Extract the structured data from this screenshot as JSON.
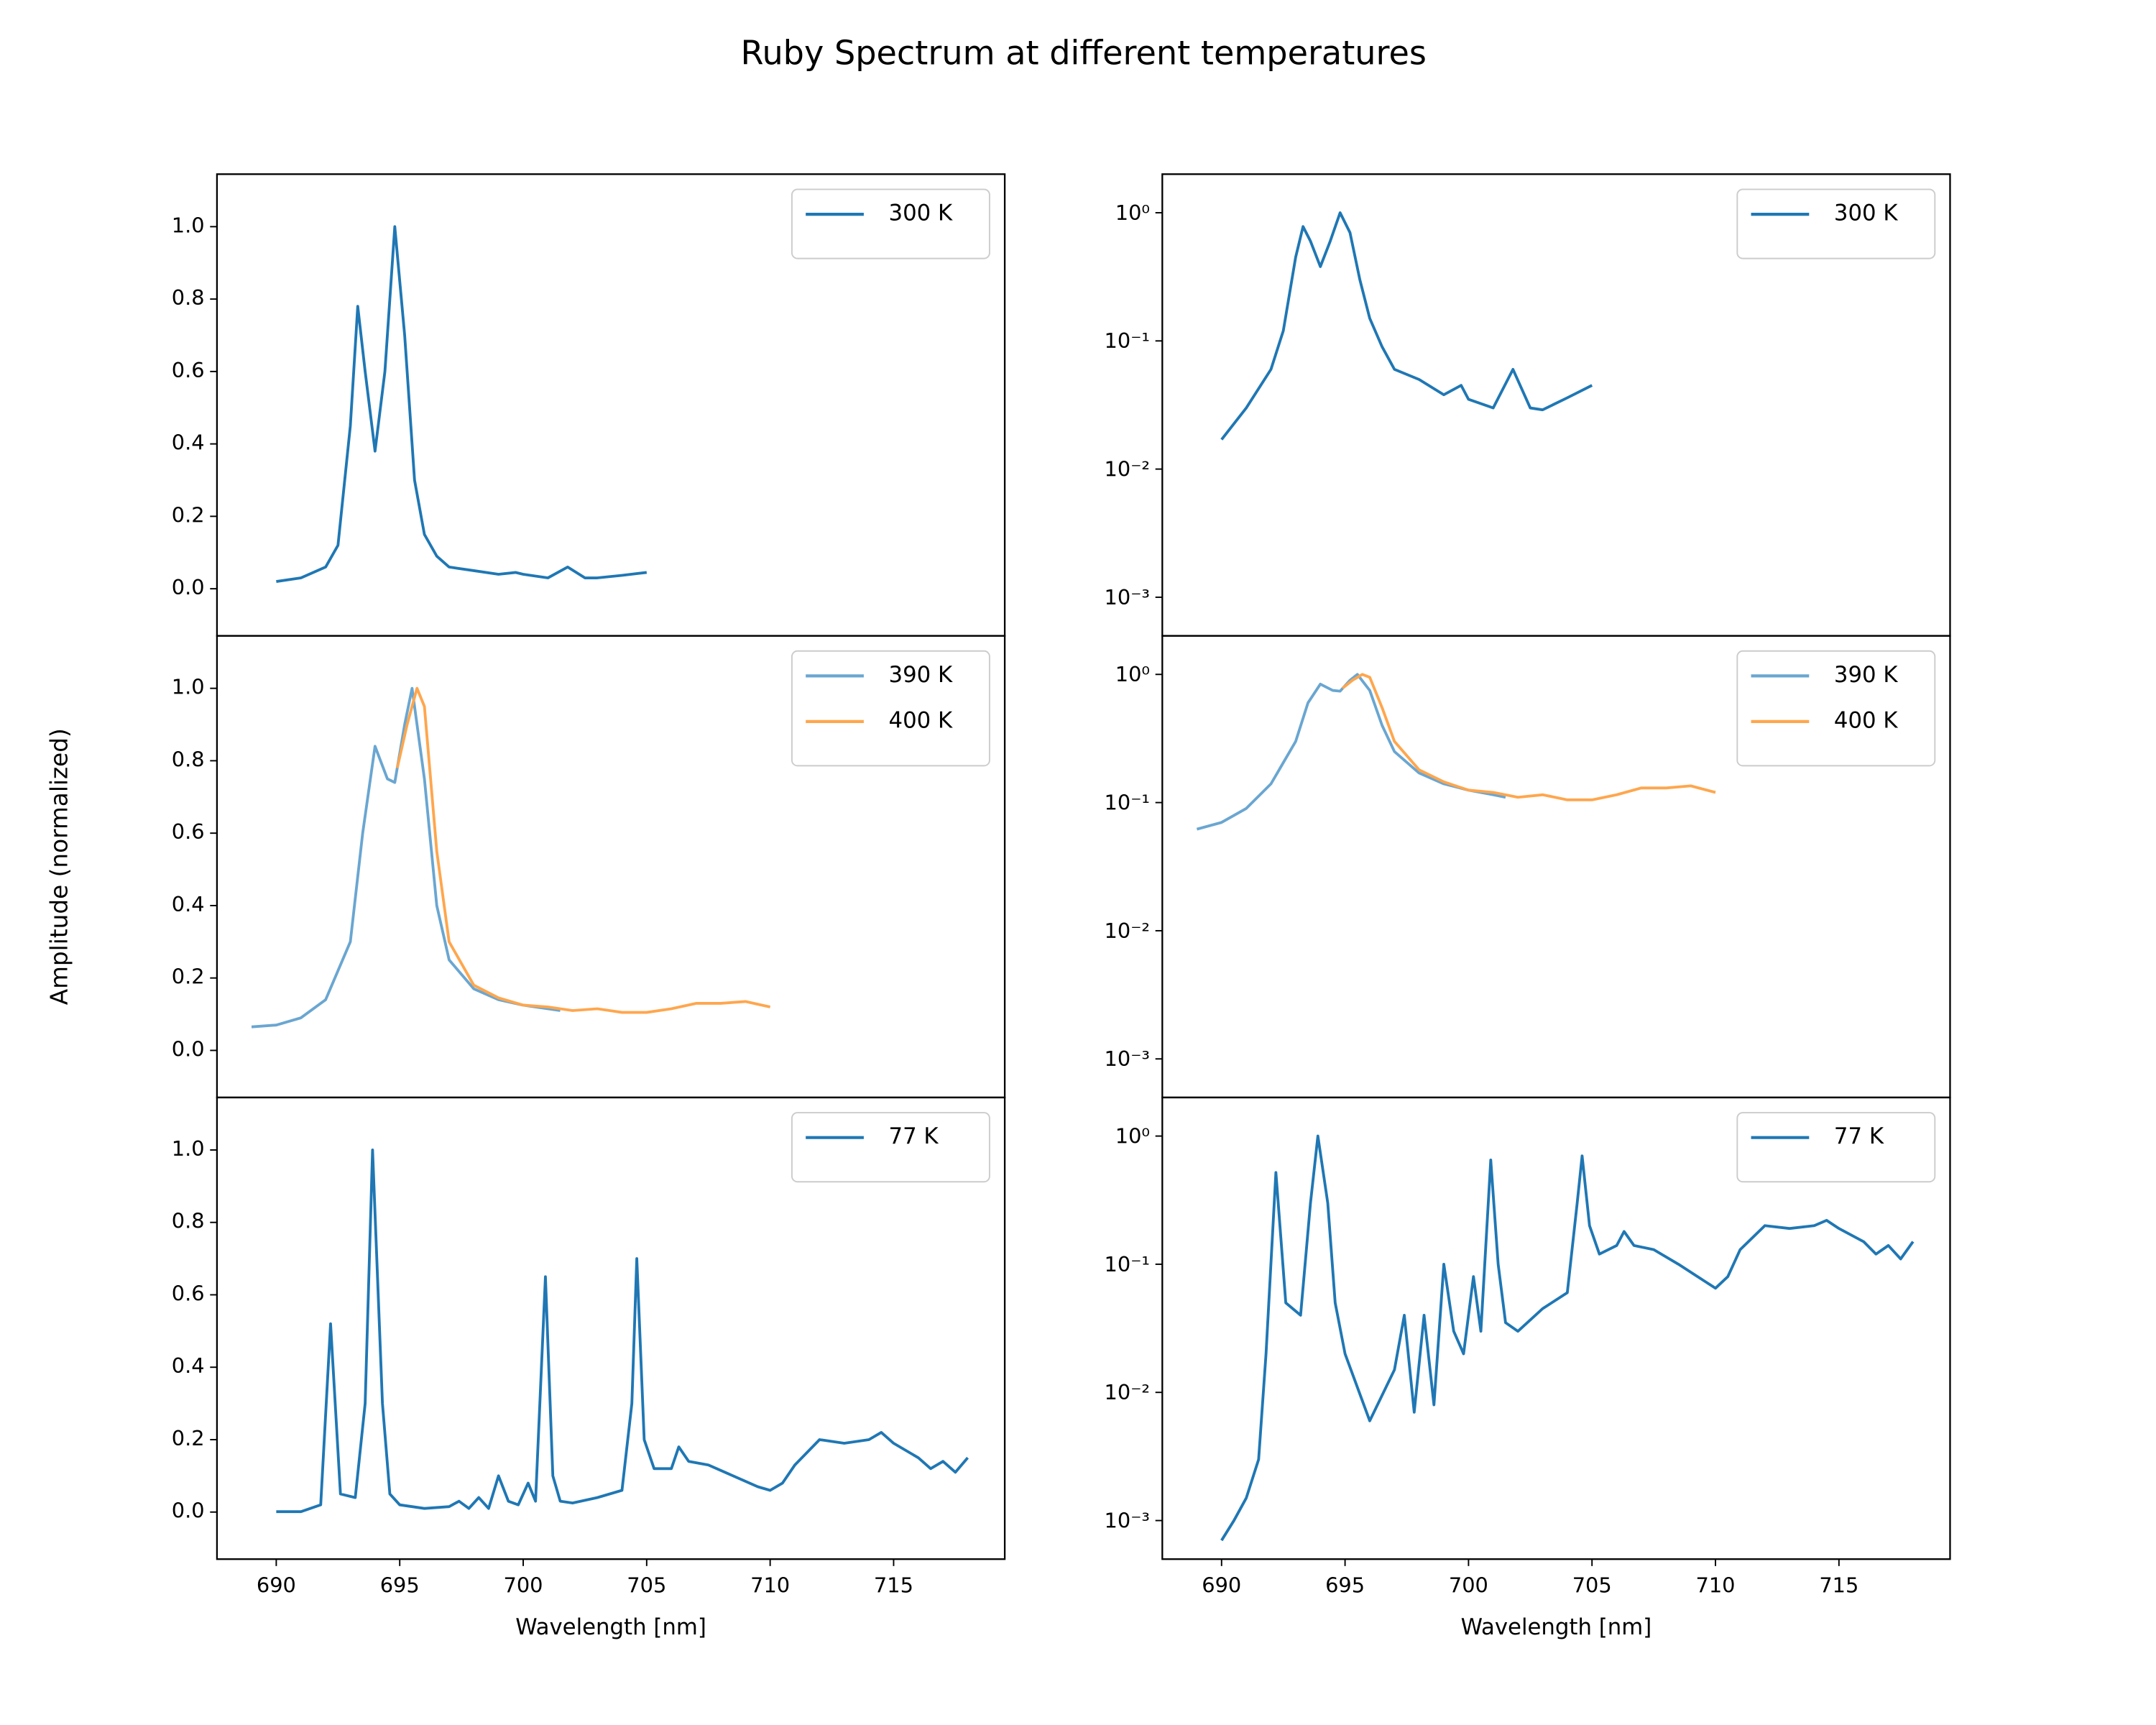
{
  "title": "Ruby Spectrum at different temperatures",
  "ylabel": "Amplitude (normalized)",
  "chart_data": [
    {
      "type": "line",
      "xlim": [
        687.6,
        719.5
      ],
      "ylim": [
        -0.13,
        1.145
      ],
      "yscale": "linear",
      "legend": "upper right",
      "yticks": [
        {
          "value": 0,
          "label": "0.0"
        },
        0.2,
        0.4,
        0.6,
        0.8,
        {
          "value": 1,
          "label": "1.0"
        }
      ],
      "series": [
        {
          "name": "300 K",
          "color": "#1f77b4",
          "x": [
            690,
            691,
            692,
            692.5,
            693,
            693.3,
            693.6,
            694,
            694.4,
            694.8,
            695.2,
            695.6,
            696,
            696.5,
            697,
            698,
            699,
            699.7,
            700,
            701,
            701.8,
            702.5,
            703,
            704,
            705
          ],
          "values": [
            0.02,
            0.03,
            0.06,
            0.12,
            0.45,
            0.78,
            0.6,
            0.38,
            0.6,
            1.0,
            0.7,
            0.3,
            0.15,
            0.09,
            0.06,
            0.05,
            0.04,
            0.045,
            0.04,
            0.03,
            0.06,
            0.03,
            0.03,
            0.037,
            0.045
          ]
        }
      ]
    },
    {
      "type": "line",
      "xlim": [
        687.6,
        719.5
      ],
      "ylim": [
        0.0005,
        2.0
      ],
      "yscale": "log",
      "legend": "upper right",
      "yticks": [
        {
          "value": 0.001,
          "label": "10⁻³"
        },
        {
          "value": 0.01,
          "label": "10⁻²"
        },
        {
          "value": 0.1,
          "label": "10⁻¹"
        },
        {
          "value": 1,
          "label": "10⁰"
        }
      ],
      "series": [
        {
          "name": "300 K",
          "color": "#1f77b4",
          "x": [
            690,
            691,
            692,
            692.5,
            693,
            693.3,
            693.6,
            694,
            694.4,
            694.8,
            695.2,
            695.6,
            696,
            696.5,
            697,
            698,
            699,
            699.7,
            700,
            701,
            701.8,
            702.5,
            703,
            704,
            705
          ],
          "values": [
            0.017,
            0.03,
            0.06,
            0.12,
            0.45,
            0.78,
            0.6,
            0.38,
            0.6,
            1.0,
            0.7,
            0.3,
            0.15,
            0.09,
            0.06,
            0.05,
            0.038,
            0.045,
            0.035,
            0.03,
            0.06,
            0.03,
            0.029,
            0.036,
            0.045
          ]
        }
      ]
    },
    {
      "type": "line",
      "xlim": [
        687.6,
        719.5
      ],
      "ylim": [
        -0.13,
        1.145
      ],
      "yscale": "linear",
      "legend": "upper right",
      "yticks": [
        {
          "value": 0,
          "label": "0.0"
        },
        0.2,
        0.4,
        0.6,
        0.8,
        {
          "value": 1,
          "label": "1.0"
        }
      ],
      "series": [
        {
          "name": "390 K",
          "color": "#6aa6d1",
          "x": [
            689,
            690,
            691,
            692,
            693,
            693.5,
            694,
            694.5,
            694.8,
            695.2,
            695.5,
            696,
            696.5,
            697,
            698,
            699,
            700,
            701,
            701.5
          ],
          "values": [
            0.065,
            0.07,
            0.09,
            0.14,
            0.3,
            0.6,
            0.84,
            0.75,
            0.74,
            0.9,
            1.0,
            0.75,
            0.4,
            0.25,
            0.17,
            0.14,
            0.125,
            0.115,
            0.11
          ]
        },
        {
          "name": "400 K",
          "color": "#ffa64d",
          "x": [
            694.9,
            695.3,
            695.7,
            696,
            696.5,
            697,
            698,
            699,
            700,
            701,
            702,
            703,
            703.5,
            704,
            705,
            706,
            707,
            708,
            709,
            710
          ],
          "values": [
            0.78,
            0.9,
            1.0,
            0.95,
            0.55,
            0.3,
            0.18,
            0.145,
            0.125,
            0.12,
            0.11,
            0.115,
            0.11,
            0.105,
            0.105,
            0.115,
            0.13,
            0.13,
            0.135,
            0.12
          ]
        }
      ]
    },
    {
      "type": "line",
      "xlim": [
        687.6,
        719.5
      ],
      "ylim": [
        0.0005,
        2.0
      ],
      "yscale": "log",
      "legend": "upper right",
      "yticks": [
        {
          "value": 0.001,
          "label": "10⁻³"
        },
        {
          "value": 0.01,
          "label": "10⁻²"
        },
        {
          "value": 0.1,
          "label": "10⁻¹"
        },
        {
          "value": 1,
          "label": "10⁰"
        }
      ],
      "series": [
        {
          "name": "390 K",
          "color": "#6aa6d1",
          "x": [
            689,
            690,
            691,
            692,
            693,
            693.5,
            694,
            694.5,
            694.8,
            695.2,
            695.5,
            696,
            696.5,
            697,
            698,
            699,
            700,
            701,
            701.5
          ],
          "values": [
            0.062,
            0.07,
            0.09,
            0.14,
            0.3,
            0.6,
            0.84,
            0.75,
            0.74,
            0.9,
            1.0,
            0.75,
            0.4,
            0.25,
            0.17,
            0.14,
            0.125,
            0.115,
            0.11
          ]
        },
        {
          "name": "400 K",
          "color": "#ffa64d",
          "x": [
            694.9,
            695.3,
            695.7,
            696,
            696.5,
            697,
            698,
            699,
            700,
            701,
            702,
            703,
            703.5,
            704,
            705,
            706,
            707,
            708,
            709,
            710
          ],
          "values": [
            0.78,
            0.9,
            1.0,
            0.95,
            0.55,
            0.3,
            0.18,
            0.145,
            0.125,
            0.12,
            0.11,
            0.115,
            0.11,
            0.105,
            0.105,
            0.115,
            0.13,
            0.13,
            0.135,
            0.12
          ]
        }
      ]
    },
    {
      "type": "line",
      "xlim": [
        687.6,
        719.5
      ],
      "ylim": [
        -0.13,
        1.145
      ],
      "yscale": "linear",
      "legend": "upper right",
      "xlabel": "Wavelength [nm]",
      "xticks": [
        690,
        695,
        700,
        705,
        710,
        715
      ],
      "yticks": [
        {
          "value": 0,
          "label": "0.0"
        },
        0.2,
        0.4,
        0.6,
        0.8,
        {
          "value": 1,
          "label": "1.0"
        }
      ],
      "series": [
        {
          "name": "77 K",
          "color": "#1f77b4",
          "x": [
            690,
            691,
            691.8,
            692.2,
            692.6,
            693.2,
            693.6,
            693.9,
            694.3,
            694.6,
            695,
            696,
            697,
            697.4,
            697.8,
            698.2,
            698.6,
            699,
            699.4,
            699.8,
            700.2,
            700.5,
            700.9,
            701.2,
            701.5,
            702,
            703,
            704,
            704.4,
            704.6,
            704.9,
            705.3,
            706,
            706.3,
            706.7,
            707.5,
            708.5,
            709.5,
            710,
            710.5,
            711,
            712,
            713,
            714,
            714.5,
            715,
            716,
            716.5,
            717,
            717.5,
            718
          ],
          "values": [
            0.001,
            0.001,
            0.02,
            0.52,
            0.05,
            0.04,
            0.3,
            1.0,
            0.3,
            0.05,
            0.02,
            0.01,
            0.015,
            0.03,
            0.01,
            0.04,
            0.01,
            0.1,
            0.03,
            0.02,
            0.08,
            0.03,
            0.65,
            0.1,
            0.03,
            0.025,
            0.04,
            0.06,
            0.3,
            0.7,
            0.2,
            0.12,
            0.12,
            0.18,
            0.14,
            0.13,
            0.1,
            0.07,
            0.06,
            0.08,
            0.13,
            0.2,
            0.19,
            0.2,
            0.22,
            0.19,
            0.15,
            0.12,
            0.14,
            0.11,
            0.15
          ]
        }
      ]
    },
    {
      "type": "line",
      "xlim": [
        687.6,
        719.5
      ],
      "ylim": [
        0.0005,
        2.0
      ],
      "yscale": "log",
      "legend": "upper right",
      "xlabel": "Wavelength [nm]",
      "xticks": [
        690,
        695,
        700,
        705,
        710,
        715
      ],
      "yticks": [
        {
          "value": 0.001,
          "label": "10⁻³"
        },
        {
          "value": 0.01,
          "label": "10⁻²"
        },
        {
          "value": 0.1,
          "label": "10⁻¹"
        },
        {
          "value": 1,
          "label": "10⁰"
        }
      ],
      "series": [
        {
          "name": "77 K",
          "color": "#1f77b4",
          "x": [
            690,
            690.5,
            691,
            691.5,
            691.8,
            692.2,
            692.6,
            693.2,
            693.6,
            693.9,
            694.3,
            694.6,
            695,
            696,
            697,
            697.4,
            697.8,
            698.2,
            698.6,
            699,
            699.4,
            699.8,
            700.2,
            700.5,
            700.9,
            701.2,
            701.5,
            702,
            703,
            704,
            704.4,
            704.6,
            704.9,
            705.3,
            706,
            706.3,
            706.7,
            707.5,
            708.5,
            709.5,
            710,
            710.5,
            711,
            712,
            713,
            714,
            714.5,
            715,
            716,
            716.5,
            717,
            717.5,
            718
          ],
          "values": [
            0.0007,
            0.001,
            0.0015,
            0.003,
            0.02,
            0.52,
            0.05,
            0.04,
            0.3,
            1.0,
            0.3,
            0.05,
            0.02,
            0.006,
            0.015,
            0.04,
            0.007,
            0.04,
            0.008,
            0.1,
            0.03,
            0.02,
            0.08,
            0.03,
            0.65,
            0.1,
            0.035,
            0.03,
            0.045,
            0.06,
            0.3,
            0.7,
            0.2,
            0.12,
            0.14,
            0.18,
            0.14,
            0.13,
            0.1,
            0.075,
            0.065,
            0.08,
            0.13,
            0.2,
            0.19,
            0.2,
            0.22,
            0.19,
            0.15,
            0.12,
            0.14,
            0.11,
            0.15
          ]
        }
      ]
    }
  ]
}
